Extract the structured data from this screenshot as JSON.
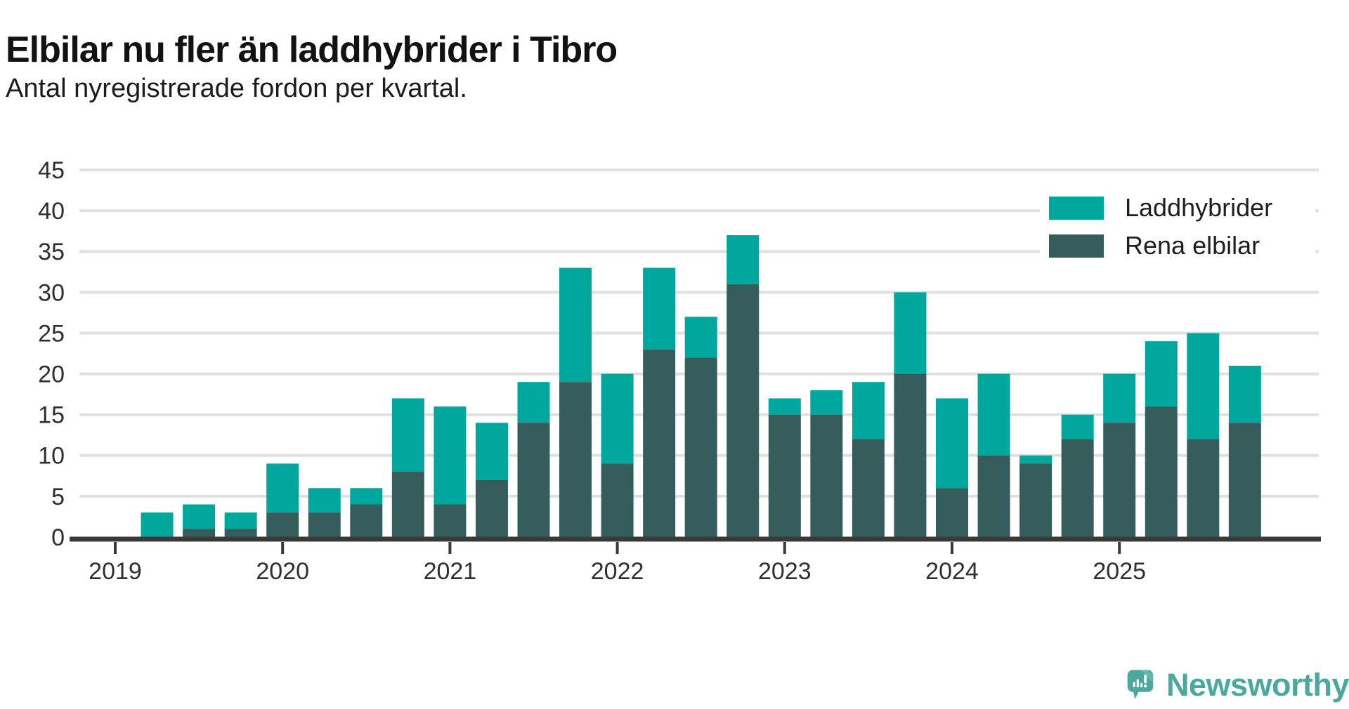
{
  "title": "Elbilar nu fler än laddhybrider i Tibro",
  "subtitle": "Antal nyregistrerade fordon per kvartal.",
  "legend": [
    {
      "label": "Laddhybrider",
      "color": "#00a79c"
    },
    {
      "label": "Rena elbilar",
      "color": "#355d5b"
    }
  ],
  "branding": {
    "logo_text": "Newsworthy",
    "logo_color": "#4ba89c"
  },
  "colors": {
    "laddhybrider": "#00a79c",
    "rena_elbilar": "#355d5b",
    "gridline": "#e0e0e0",
    "axis_line": "#3a3a3a",
    "tick_text": "#2f2f2f"
  },
  "chart_data": {
    "type": "bar",
    "stacked": true,
    "title": "Elbilar nu fler än laddhybrider i Tibro",
    "subtitle": "Antal nyregistrerade fordon per kvartal.",
    "grid": true,
    "legend_position": "top-right",
    "ylim": [
      0,
      45
    ],
    "yticks": [
      0,
      5,
      10,
      15,
      20,
      25,
      30,
      35,
      40,
      45
    ],
    "year_labels": [
      "2019",
      "2020",
      "2021",
      "2022",
      "2023",
      "2024",
      "2025"
    ],
    "quarters": [
      "2019 Q1",
      "2019 Q2",
      "2019 Q3",
      "2019 Q4",
      "2020 Q1",
      "2020 Q2",
      "2020 Q3",
      "2020 Q4",
      "2021 Q1",
      "2021 Q2",
      "2021 Q3",
      "2021 Q4",
      "2022 Q1",
      "2022 Q2",
      "2022 Q3",
      "2022 Q4",
      "2023 Q1",
      "2023 Q2",
      "2023 Q3",
      "2023 Q4",
      "2024 Q1",
      "2024 Q2",
      "2024 Q3",
      "2024 Q4",
      "2025 Q1",
      "2025 Q2",
      "2025 Q3",
      "2025 Q4"
    ],
    "series": [
      {
        "name": "Rena elbilar",
        "color": "#355d5b",
        "stack_order": "bottom",
        "values": [
          0,
          0,
          1,
          1,
          3,
          3,
          4,
          8,
          4,
          7,
          14,
          19,
          9,
          23,
          22,
          31,
          15,
          15,
          12,
          20,
          6,
          10,
          9,
          12,
          14,
          16,
          12,
          14
        ]
      },
      {
        "name": "Laddhybrider",
        "color": "#00a79c",
        "stack_order": "top",
        "values": [
          0,
          3,
          3,
          2,
          6,
          3,
          2,
          9,
          12,
          7,
          5,
          14,
          11,
          10,
          5,
          6,
          2,
          3,
          7,
          10,
          11,
          10,
          1,
          3,
          6,
          8,
          13,
          7
        ]
      }
    ],
    "totals": [
      0,
      3,
      4,
      3,
      9,
      6,
      6,
      17,
      16,
      14,
      19,
      33,
      20,
      33,
      27,
      37,
      17,
      18,
      19,
      30,
      17,
      20,
      10,
      15,
      20,
      24,
      25,
      21
    ]
  }
}
